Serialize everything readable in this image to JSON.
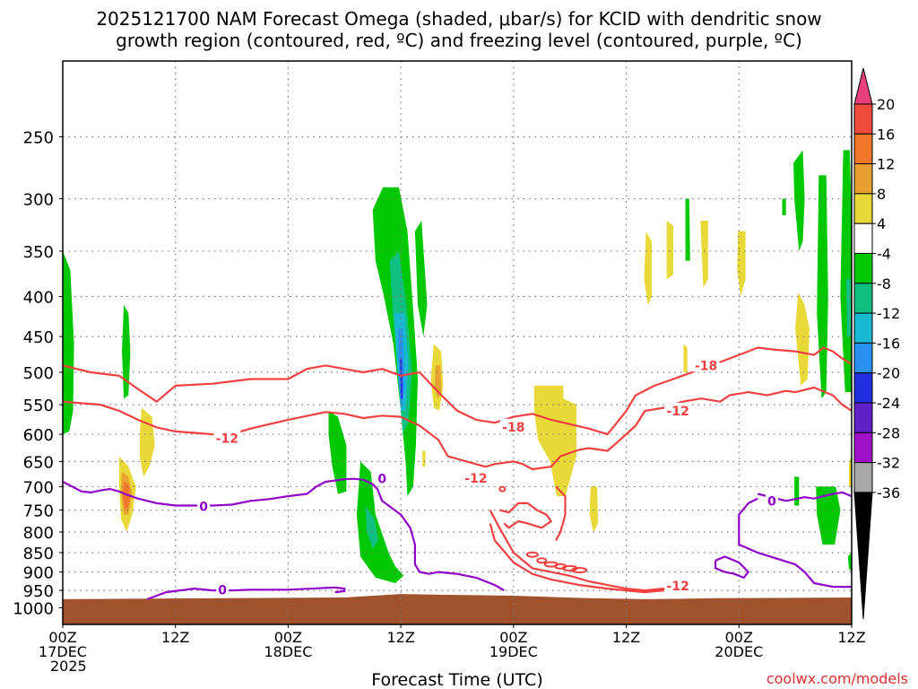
{
  "chart_data": {
    "type": "heatmap",
    "title_line1": "2025121700 NAM Forecast Omega (shaded, μbar/s) for KCID with dendritic snow",
    "title_line2": "growth region (contoured, red, ºC) and freezing level (contoured, purple, ºC)",
    "xlabel": "Forecast Time (UTC)",
    "ylabel": "",
    "credit": "coolwx.com/models",
    "y_ticks": [
      250,
      300,
      350,
      400,
      450,
      500,
      550,
      600,
      650,
      700,
      750,
      800,
      850,
      900,
      950,
      1000
    ],
    "y_range_hpa": [
      200,
      1050
    ],
    "x_range_hours": [
      0,
      84
    ],
    "x_ticks": [
      {
        "hour": 0,
        "lines": [
          "00Z",
          "17DEC",
          "2025"
        ]
      },
      {
        "hour": 12,
        "lines": [
          "12Z"
        ]
      },
      {
        "hour": 24,
        "lines": [
          "00Z",
          "18DEC"
        ]
      },
      {
        "hour": 36,
        "lines": [
          "12Z"
        ]
      },
      {
        "hour": 48,
        "lines": [
          "00Z",
          "19DEC"
        ]
      },
      {
        "hour": 60,
        "lines": [
          "12Z"
        ]
      },
      {
        "hour": 72,
        "lines": [
          "00Z",
          "20DEC"
        ]
      },
      {
        "hour": 84,
        "lines": [
          "12Z"
        ]
      }
    ],
    "colorbar": {
      "labels": [
        "20",
        "16",
        "12",
        "8",
        "4",
        "-4",
        "-8",
        "-12",
        "-16",
        "-20",
        "-24",
        "-28",
        "-32",
        "-36"
      ],
      "colors": [
        "#e8407a",
        "#f04a3c",
        "#f07828",
        "#e8a030",
        "#e8d838",
        "#ffffff",
        "#00c800",
        "#10c080",
        "#18b8d0",
        "#2890f0",
        "#2030e0",
        "#6020c8",
        "#a010c8",
        "#a8a8a8",
        "#000000"
      ],
      "colors_note": "top arrow, 20..16, 16..12, 12..8, 8..4, 4..-4 (white), -4..-8, -8..-12, -12..-16, -16..-20, -20..-24, -24..-28, -28..-32, -32..-36, bottom arrow"
    },
    "contour_labels": [
      {
        "text": "-12",
        "color": "#f04040",
        "hour": 17.5,
        "hpa": 607
      },
      {
        "text": "-18",
        "color": "#f04040",
        "hour": 48,
        "hpa": 587
      },
      {
        "text": "-12",
        "color": "#f04040",
        "hour": 44,
        "hpa": 683
      },
      {
        "text": "-18",
        "color": "#f04040",
        "hour": 68.5,
        "hpa": 490
      },
      {
        "text": "-12",
        "color": "#f04040",
        "hour": 65.5,
        "hpa": 560
      },
      {
        "text": "-12",
        "color": "#f04040",
        "hour": 65.5,
        "hpa": 937
      },
      {
        "text": "0",
        "color": "#9000c8",
        "hour": 15,
        "hpa": 742
      },
      {
        "text": "0",
        "color": "#9000c8",
        "hour": 34,
        "hpa": 684
      },
      {
        "text": "0",
        "color": "#9000c8",
        "hour": 17,
        "hpa": 948
      },
      {
        "text": "0",
        "color": "#9000c8",
        "hour": 75.5,
        "hpa": 730
      }
    ],
    "surface_color": "#a0522d",
    "dgz_color": "#f04040",
    "freezing_color": "#9000c8"
  }
}
